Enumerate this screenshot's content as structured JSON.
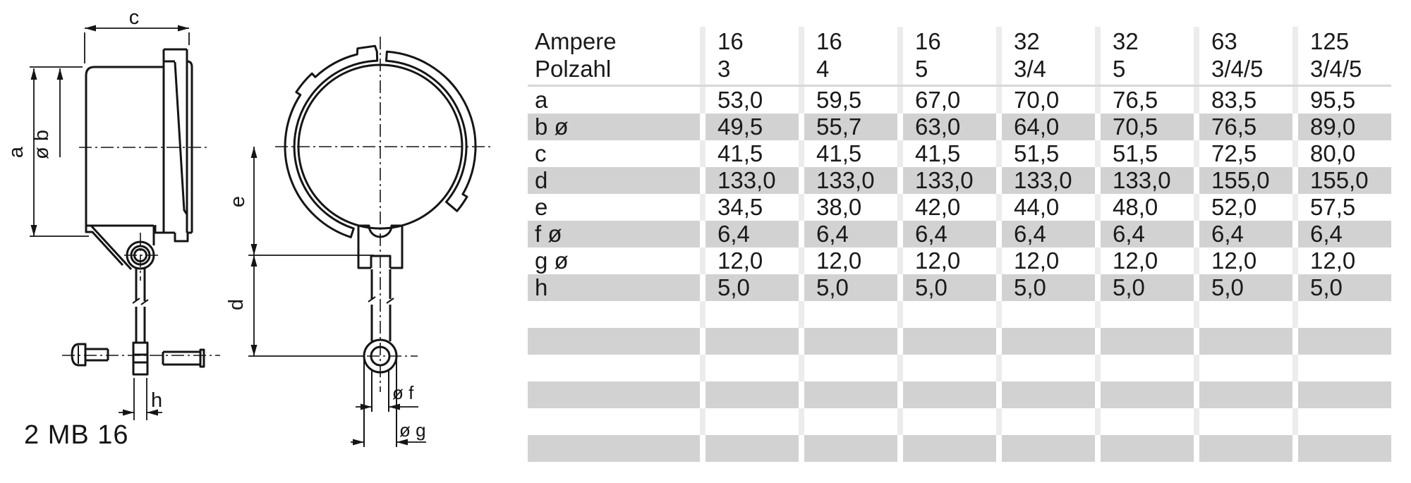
{
  "drawing": {
    "caption": "2 MB 16",
    "dim_labels": {
      "c": "c",
      "a": "a",
      "b": "ø b",
      "e": "e",
      "d": "d",
      "h": "h",
      "f": "ø f",
      "g": "ø g"
    }
  },
  "table": {
    "header_row1_label": "Ampere",
    "header_row2_label": "Polzahl",
    "columns": [
      {
        "ampere": "16",
        "polzahl": "3"
      },
      {
        "ampere": "16",
        "polzahl": "4"
      },
      {
        "ampere": "16",
        "polzahl": "5"
      },
      {
        "ampere": "32",
        "polzahl": "3/4"
      },
      {
        "ampere": "32",
        "polzahl": "5"
      },
      {
        "ampere": "63",
        "polzahl": "3/4/5"
      },
      {
        "ampere": "125",
        "polzahl": "3/4/5"
      }
    ],
    "rows": [
      {
        "label": "a",
        "values": [
          "53,0",
          "59,5",
          "67,0",
          "70,0",
          "76,5",
          "83,5",
          "95,5"
        ]
      },
      {
        "label": "b ø",
        "values": [
          "49,5",
          "55,7",
          "63,0",
          "64,0",
          "70,5",
          "76,5",
          "89,0"
        ]
      },
      {
        "label": "c",
        "values": [
          "41,5",
          "41,5",
          "41,5",
          "51,5",
          "51,5",
          "72,5",
          "80,0"
        ]
      },
      {
        "label": "d",
        "values": [
          "133,0",
          "133,0",
          "133,0",
          "133,0",
          "133,0",
          "155,0",
          "155,0"
        ]
      },
      {
        "label": "e",
        "values": [
          "34,5",
          "38,0",
          "42,0",
          "44,0",
          "48,0",
          "52,0",
          "57,5"
        ]
      },
      {
        "label": "f ø",
        "values": [
          "6,4",
          "6,4",
          "6,4",
          "6,4",
          "6,4",
          "6,4",
          "6,4"
        ]
      },
      {
        "label": "g ø",
        "values": [
          "12,0",
          "12,0",
          "12,0",
          "12,0",
          "12,0",
          "12,0",
          "12,0"
        ]
      },
      {
        "label": "h",
        "values": [
          "5,0",
          "5,0",
          "5,0",
          "5,0",
          "5,0",
          "5,0",
          "5,0"
        ]
      }
    ],
    "empty_row_count": 6
  },
  "colors": {
    "stripe_gray": "#d2d2d2",
    "separator_gray": "#d7d7d7",
    "gap_light": "#ececec",
    "line_black": "#151515",
    "text": "#1a1a1a"
  }
}
